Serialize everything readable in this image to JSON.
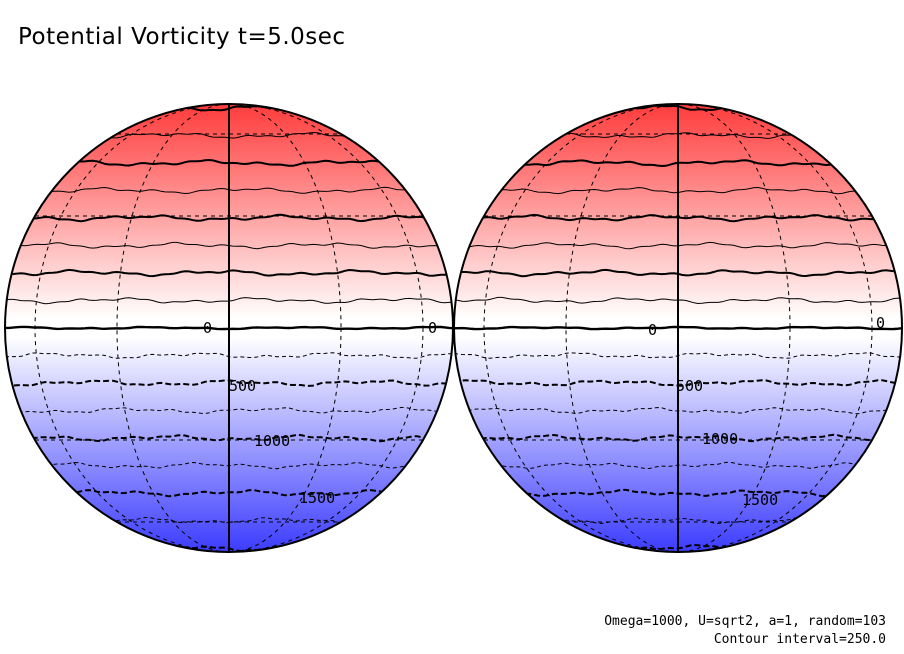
{
  "chart_data": {
    "type": "contour",
    "title": "Potential Vorticity t=5.0sec",
    "projection": "orthographic, two hemispheres",
    "contour_interval": 250.0,
    "levels": [
      -2000,
      -1750,
      -1500,
      -1250,
      -1000,
      -750,
      -500,
      -250,
      0,
      250,
      500,
      750,
      1000,
      1250,
      1500,
      1750,
      2000
    ],
    "labels": [
      "0",
      "0",
      "500",
      "1000",
      "1500",
      "0",
      "0",
      "500",
      "1000",
      "1500"
    ],
    "colors": {
      "positive": "#ff3c3c",
      "zero": "#ffffff",
      "negative": "#3c3cff"
    },
    "parameters": "Omega=1000, U=sqrt2, a=1, random=103",
    "interval_text": "Contour interval=250.0"
  }
}
